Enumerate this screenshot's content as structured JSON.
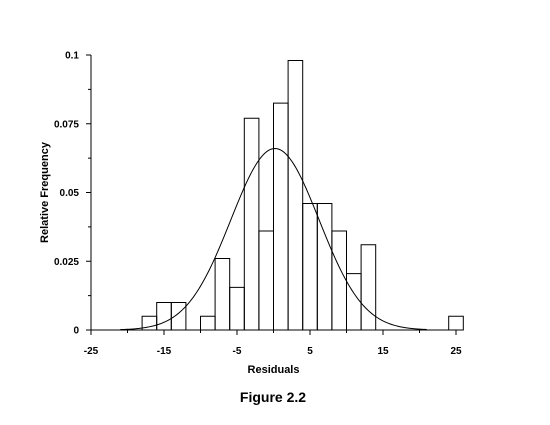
{
  "chart_data": {
    "type": "bar",
    "xlabel": "Residuals",
    "ylabel": "Relative Frequency",
    "caption": "Figure 2.2",
    "xlim": [
      -25,
      25
    ],
    "ylim": [
      0,
      0.1
    ],
    "x_ticks": [
      -25,
      -15,
      -5,
      5,
      15,
      25
    ],
    "x_tick_labels": [
      "-25",
      "-15",
      "-5",
      "5",
      "15",
      "25"
    ],
    "y_ticks": [
      0,
      0.025,
      0.05,
      0.075,
      0.1
    ],
    "y_tick_labels": [
      "0",
      "0.025",
      "0.05",
      "0.075",
      "0.1"
    ],
    "bin_width": 2,
    "bins": [
      {
        "start": -18,
        "end": -16,
        "value": 0.005
      },
      {
        "start": -16,
        "end": -14,
        "value": 0.01
      },
      {
        "start": -14,
        "end": -12,
        "value": 0.01
      },
      {
        "start": -10,
        "end": -8,
        "value": 0.005
      },
      {
        "start": -8,
        "end": -6,
        "value": 0.026
      },
      {
        "start": -6,
        "end": -4,
        "value": 0.0155
      },
      {
        "start": -4,
        "end": -2,
        "value": 0.077
      },
      {
        "start": -2,
        "end": 0,
        "value": 0.036
      },
      {
        "start": 0,
        "end": 2,
        "value": 0.0825
      },
      {
        "start": 2,
        "end": 4,
        "value": 0.098
      },
      {
        "start": 4,
        "end": 6,
        "value": 0.046
      },
      {
        "start": 6,
        "end": 8,
        "value": 0.046
      },
      {
        "start": 8,
        "end": 10,
        "value": 0.036
      },
      {
        "start": 10,
        "end": 12,
        "value": 0.0205
      },
      {
        "start": 12,
        "end": 14,
        "value": 0.031
      },
      {
        "start": 24,
        "end": 26,
        "value": 0.005
      }
    ],
    "normal_curve": {
      "mean": 0.2,
      "sd": 6.05,
      "peak": 0.066,
      "x_range": [
        -21,
        21
      ]
    },
    "grid": false,
    "legend": "none"
  }
}
